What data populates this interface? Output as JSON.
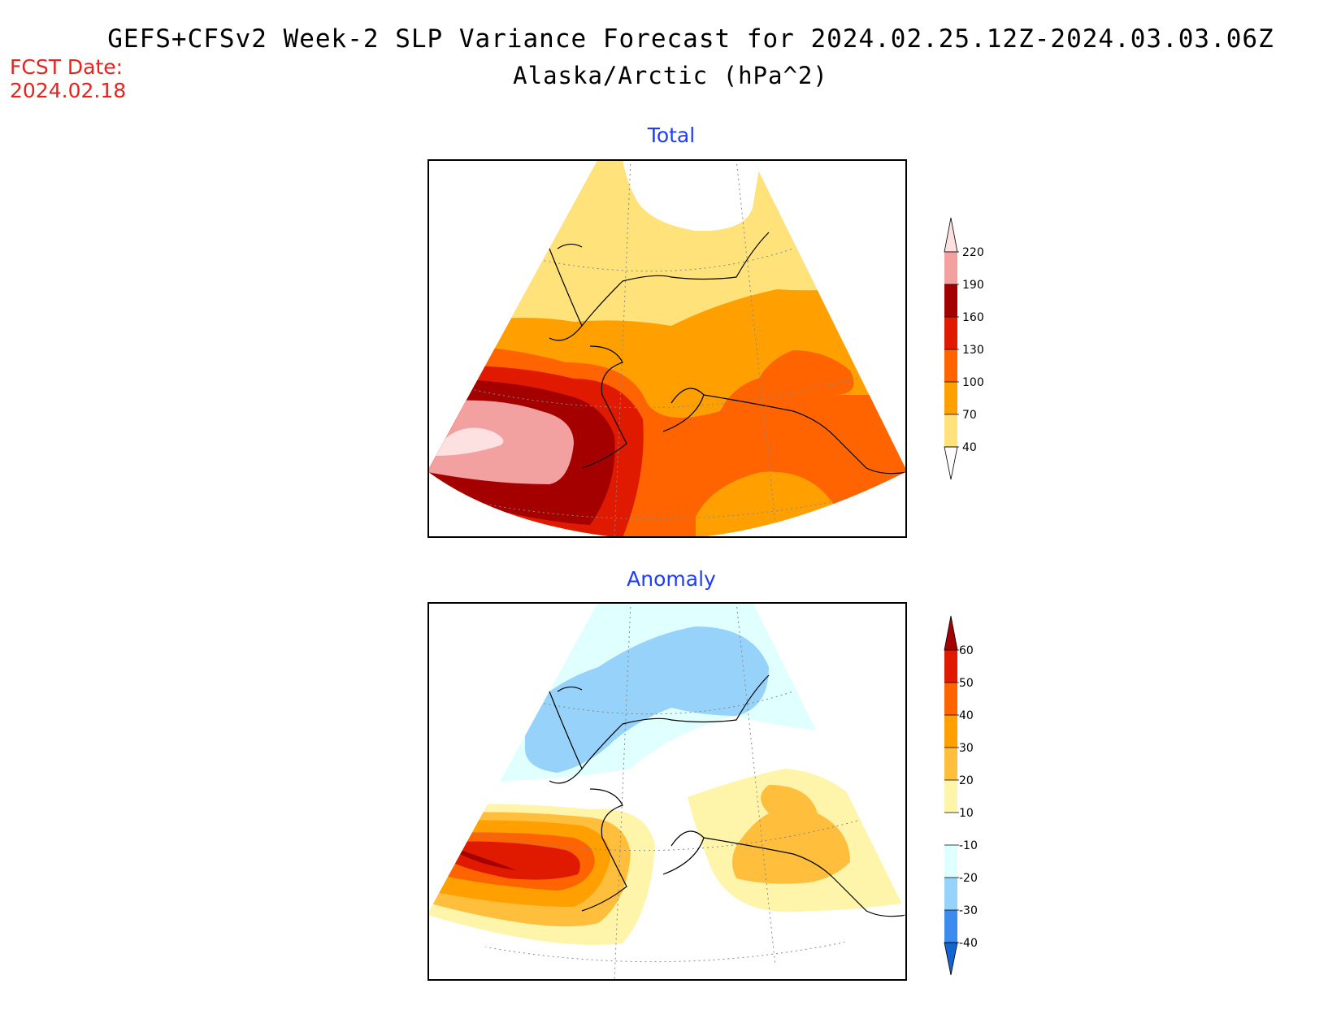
{
  "header": {
    "title": "GEFS+CFSv2 Week-2 SLP Variance Forecast for 2024.02.25.12Z-2024.03.03.06Z",
    "subtitle": "Alaska/Arctic (hPa^2)",
    "fcst_label": "FCST Date:",
    "fcst_date": "2024.02.18"
  },
  "panels": {
    "total": {
      "title": "Total",
      "colorbar": {
        "ticks": [
          "220",
          "190",
          "160",
          "130",
          "100",
          "70",
          "40"
        ],
        "colors": [
          "#fde0e0",
          "#f2a0a0",
          "#a50000",
          "#e01a00",
          "#ff6400",
          "#ffa000",
          "#ffe27a",
          "#ffffff"
        ]
      }
    },
    "anomaly": {
      "title": "Anomaly",
      "colorbar": {
        "ticks": [
          "60",
          "50",
          "40",
          "30",
          "20",
          "10",
          "-10",
          "-20",
          "-30",
          "-40"
        ],
        "colors": [
          "#a50000",
          "#e01a00",
          "#ff6400",
          "#ffa000",
          "#ffbe3c",
          "#fff5aa",
          "#ffffff",
          "#e0ffff",
          "#96d2fa",
          "#3c8cf0",
          "#1464d2"
        ]
      }
    }
  }
}
